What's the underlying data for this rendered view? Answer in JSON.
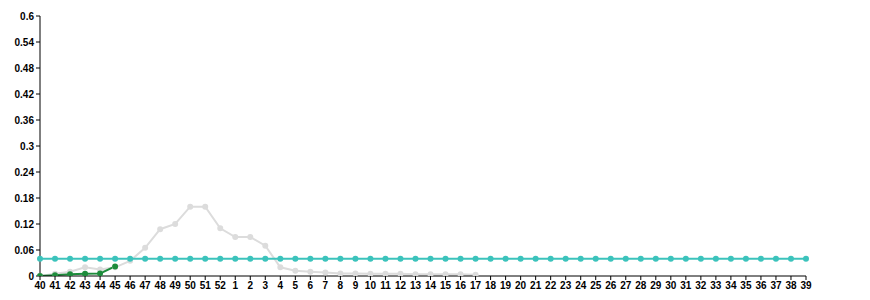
{
  "chart_data": {
    "type": "line",
    "categories": [
      "40",
      "41",
      "42",
      "43",
      "44",
      "45",
      "46",
      "47",
      "48",
      "49",
      "50",
      "51",
      "52",
      "1",
      "2",
      "3",
      "4",
      "5",
      "6",
      "7",
      "8",
      "9",
      "10",
      "11",
      "12",
      "13",
      "14",
      "15",
      "16",
      "17",
      "18",
      "19",
      "20",
      "21",
      "22",
      "23",
      "24",
      "25",
      "26",
      "27",
      "28",
      "29",
      "30",
      "31",
      "32",
      "33",
      "34",
      "35",
      "36",
      "37",
      "38",
      "39"
    ],
    "series": [
      {
        "color": "#dcdcdc",
        "marker": "circle",
        "values": [
          0,
          0.005,
          0.01,
          0.02,
          0.015,
          0.02,
          0.035,
          0.065,
          0.108,
          0.12,
          0.16,
          0.16,
          0.11,
          0.09,
          0.09,
          0.07,
          0.02,
          0.012,
          0.01,
          0.008,
          0.006,
          0.006,
          0.005,
          0.005,
          0.005,
          0.004,
          0.004,
          0.004,
          0.004,
          0.003,
          null,
          null,
          null,
          null,
          null,
          null,
          null,
          null,
          null,
          null,
          null,
          null,
          null,
          null,
          null,
          null,
          null,
          null,
          null,
          null,
          null,
          null
        ]
      },
      {
        "color": "#1e8c3c",
        "marker": "circle",
        "values": [
          0,
          0.002,
          0.004,
          0.005,
          0.006,
          0.022,
          null,
          null,
          null,
          null,
          null,
          null,
          null,
          null,
          null,
          null,
          null,
          null,
          null,
          null,
          null,
          null,
          null,
          null,
          null,
          null,
          null,
          null,
          null,
          null,
          null,
          null,
          null,
          null,
          null,
          null,
          null,
          null,
          null,
          null,
          null,
          null,
          null,
          null,
          null,
          null,
          null,
          null,
          null,
          null,
          null,
          null
        ]
      },
      {
        "color": "#3cc3bc",
        "marker": "circle",
        "values": [
          0.04,
          0.04,
          0.04,
          0.04,
          0.04,
          0.04,
          0.04,
          0.04,
          0.04,
          0.04,
          0.04,
          0.04,
          0.04,
          0.04,
          0.04,
          0.04,
          0.04,
          0.04,
          0.04,
          0.04,
          0.04,
          0.04,
          0.04,
          0.04,
          0.04,
          0.04,
          0.04,
          0.04,
          0.04,
          0.04,
          0.04,
          0.04,
          0.04,
          0.04,
          0.04,
          0.04,
          0.04,
          0.04,
          0.04,
          0.04,
          0.04,
          0.04,
          0.04,
          0.04,
          0.04,
          0.04,
          0.04,
          0.04,
          0.04,
          0.04,
          0.04,
          0.04
        ]
      }
    ],
    "ylim": [
      0,
      0.6
    ],
    "yticks": [
      0,
      0.06,
      0.12,
      0.18,
      0.24,
      0.3,
      0.36,
      0.42,
      0.48,
      0.54,
      0.6
    ],
    "grid": false
  }
}
